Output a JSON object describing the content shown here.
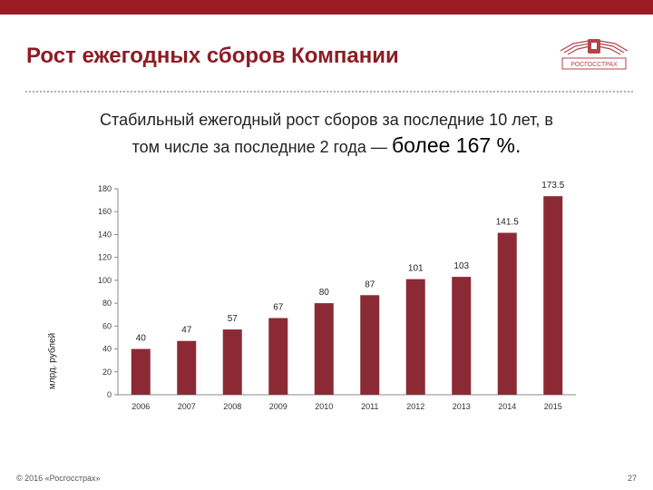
{
  "page": {
    "title": "Рост ежегодных сборов Компании",
    "subtitle_part1": "Стабильный ежегодный рост сборов за последние 10 лет, в",
    "subtitle_part2": "том числе за последние 2 года —",
    "subtitle_emphasis": "более 167 %.",
    "logo_text": "РОСГОССТРАХ",
    "footer_copyright": "© 2016 «Росгосстрах»",
    "page_number": "27",
    "brand_color": "#9b1b22",
    "title_color": "#8c1c24"
  },
  "chart_data": {
    "type": "bar",
    "title": "",
    "xlabel": "",
    "ylabel": "млрд. рублей",
    "categories": [
      "2006",
      "2007",
      "2008",
      "2009",
      "2010",
      "2011",
      "2012",
      "2013",
      "2014",
      "2015"
    ],
    "values": [
      40,
      47,
      57,
      67,
      80,
      87,
      101,
      103,
      141.5,
      173.5
    ],
    "data_labels": [
      "40",
      "47",
      "57",
      "67",
      "80",
      "87",
      "101",
      "103",
      "141.5",
      "173.5"
    ],
    "yticks": [
      0,
      20,
      40,
      60,
      80,
      100,
      120,
      140,
      160,
      180
    ],
    "ylim": [
      0,
      180
    ],
    "grid": false,
    "bar_color": "#8b2a35"
  }
}
